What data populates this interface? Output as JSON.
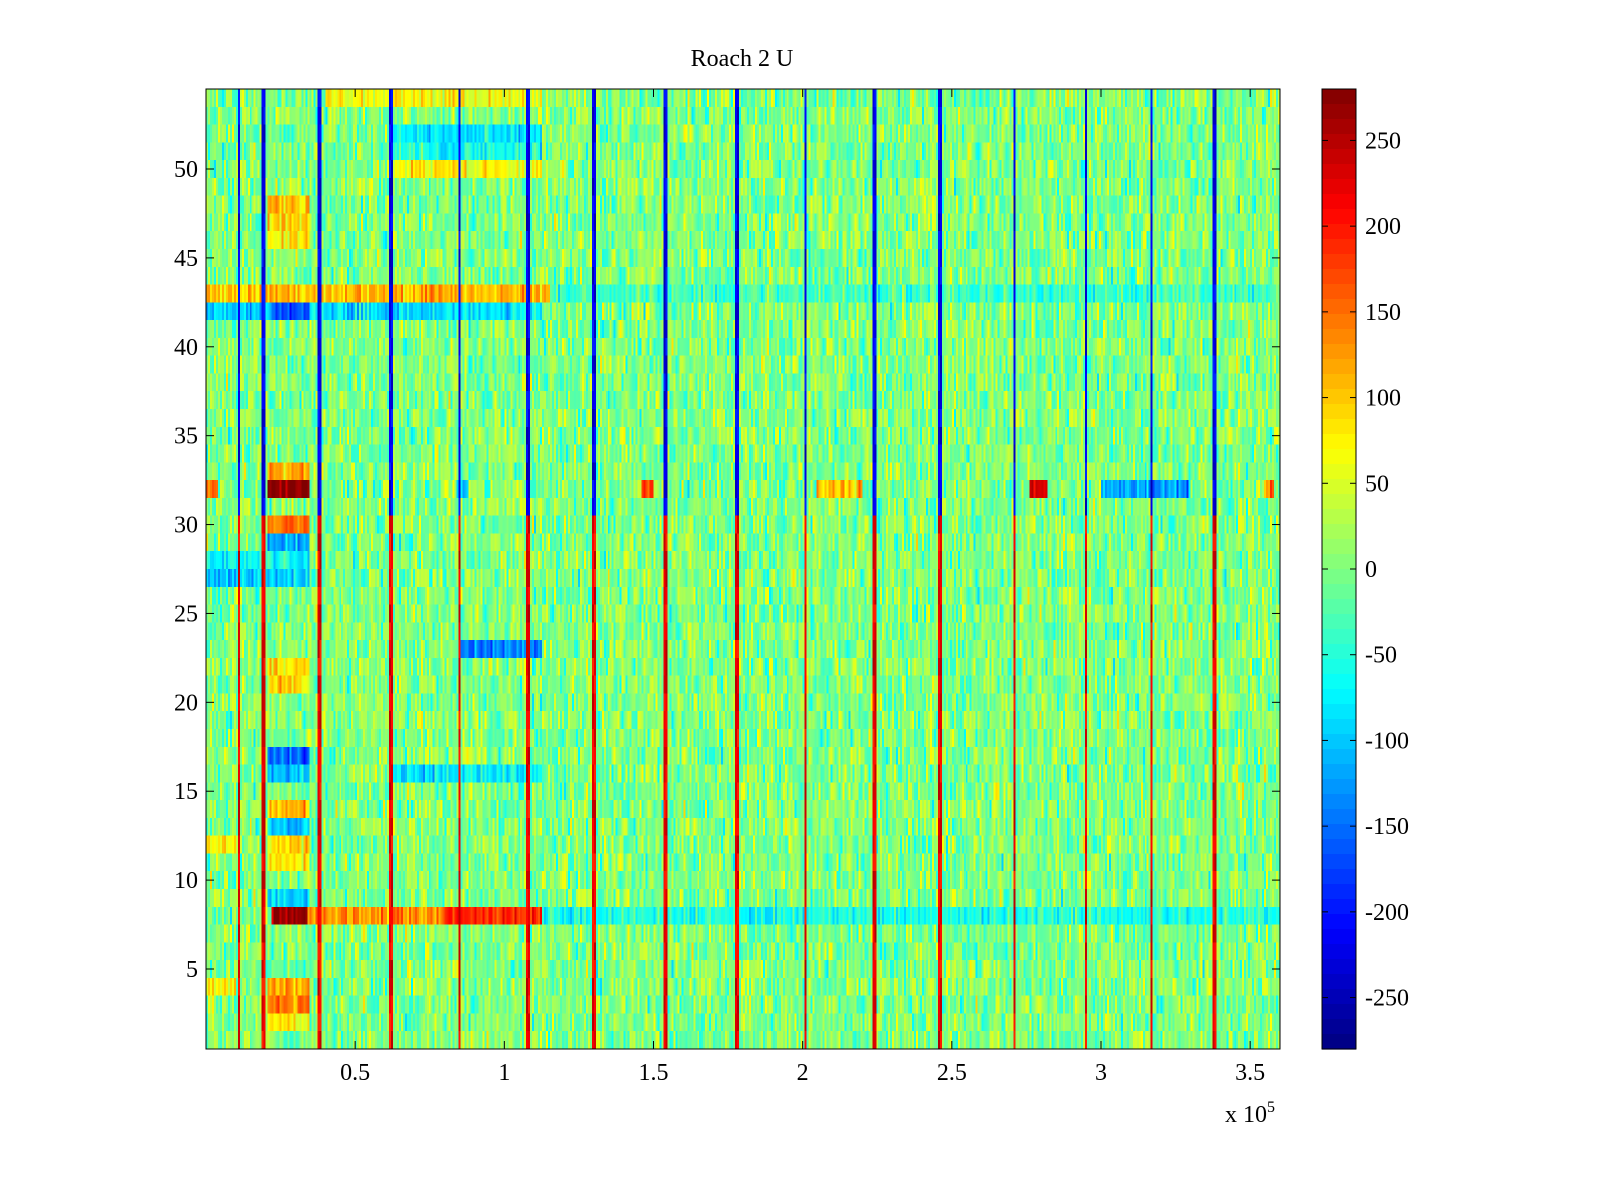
{
  "chart_data": {
    "type": "heatmap",
    "title": "Roach 2 U",
    "xlabel": "",
    "ylabel": "",
    "x_multiplier_label": {
      "base": "x 10",
      "exponent": "5"
    },
    "xlim": [
      0,
      360000
    ],
    "ylim": [
      0.5,
      54.5
    ],
    "xticks": [
      {
        "value": 0.5,
        "label": "0.5"
      },
      {
        "value": 1,
        "label": "1"
      },
      {
        "value": 1.5,
        "label": "1.5"
      },
      {
        "value": 2,
        "label": "2"
      },
      {
        "value": 2.5,
        "label": "2.5"
      },
      {
        "value": 3,
        "label": "3"
      },
      {
        "value": 3.5,
        "label": "3.5"
      }
    ],
    "yticks": [
      {
        "value": 5,
        "label": "5"
      },
      {
        "value": 10,
        "label": "10"
      },
      {
        "value": 15,
        "label": "15"
      },
      {
        "value": 20,
        "label": "20"
      },
      {
        "value": 25,
        "label": "25"
      },
      {
        "value": 30,
        "label": "30"
      },
      {
        "value": 35,
        "label": "35"
      },
      {
        "value": 40,
        "label": "40"
      },
      {
        "value": 45,
        "label": "45"
      },
      {
        "value": 50,
        "label": "50"
      }
    ],
    "colorbar": {
      "colormap": "jet",
      "range": [
        -280,
        280
      ],
      "ticks": [
        {
          "value": 250,
          "label": "250"
        },
        {
          "value": 200,
          "label": "200"
        },
        {
          "value": 150,
          "label": "150"
        },
        {
          "value": 100,
          "label": "100"
        },
        {
          "value": 50,
          "label": "50"
        },
        {
          "value": 0,
          "label": "0"
        },
        {
          "value": -50,
          "label": "-50"
        },
        {
          "value": -100,
          "label": "-100"
        },
        {
          "value": -150,
          "label": "-150"
        },
        {
          "value": -200,
          "label": "-200"
        },
        {
          "value": -250,
          "label": "-250"
        }
      ]
    },
    "rows": 54,
    "x_range": [
      0,
      360000
    ],
    "background_value": 0,
    "spike_columns_x": [
      11000,
      19500,
      38000,
      62000,
      85000,
      108000,
      130000,
      154000,
      178000,
      201000,
      224000,
      246000,
      271000,
      295000,
      317000,
      338000
    ],
    "spike_value_rows_1_30": 220,
    "spike_value_rows_31_54": -220,
    "features": [
      {
        "row": 32,
        "x": [
          21000,
          35000
        ],
        "value": 280
      },
      {
        "row": 33,
        "x": [
          21000,
          35000
        ],
        "value": 120
      },
      {
        "row": 30,
        "x": [
          21000,
          35000
        ],
        "value": 150
      },
      {
        "row": 29,
        "x": [
          21000,
          35000
        ],
        "value": -120
      },
      {
        "row": 8,
        "x": [
          22000,
          34000
        ],
        "value": 270
      },
      {
        "row": 8,
        "x": [
          34000,
          80000
        ],
        "value": 130
      },
      {
        "row": 8,
        "x": [
          80000,
          113000
        ],
        "value": 190
      },
      {
        "row": 8,
        "x": [
          113000,
          360000
        ],
        "value": -55
      },
      {
        "row": 42,
        "x": [
          0,
          22000
        ],
        "value": -95
      },
      {
        "row": 42,
        "x": [
          22000,
          35000
        ],
        "value": -170
      },
      {
        "row": 42,
        "x": [
          35000,
          113000
        ],
        "value": -85
      },
      {
        "row": 43,
        "x": [
          0,
          115000
        ],
        "value": 110
      },
      {
        "row": 43,
        "x": [
          115000,
          360000
        ],
        "value": -35
      },
      {
        "row": 47,
        "x": [
          21000,
          35000
        ],
        "value": 100
      },
      {
        "row": 48,
        "x": [
          21000,
          35000
        ],
        "value": 95
      },
      {
        "row": 46,
        "x": [
          21000,
          35000
        ],
        "value": 70
      },
      {
        "row": 50,
        "x": [
          62000,
          113000
        ],
        "value": 75
      },
      {
        "row": 52,
        "x": [
          62000,
          113000
        ],
        "value": -75
      },
      {
        "row": 51,
        "x": [
          62000,
          113000
        ],
        "value": -55
      },
      {
        "row": 54,
        "x": [
          40000,
          113000
        ],
        "value": 65
      },
      {
        "row": 17,
        "x": [
          21000,
          35000
        ],
        "value": -150
      },
      {
        "row": 16,
        "x": [
          21000,
          35000
        ],
        "value": -110
      },
      {
        "row": 14,
        "x": [
          21000,
          35000
        ],
        "value": 110
      },
      {
        "row": 13,
        "x": [
          21000,
          35000
        ],
        "value": -95
      },
      {
        "row": 12,
        "x": [
          21000,
          35000
        ],
        "value": 85
      },
      {
        "row": 11,
        "x": [
          21000,
          35000
        ],
        "value": 80
      },
      {
        "row": 9,
        "x": [
          21000,
          35000
        ],
        "value": -90
      },
      {
        "row": 3,
        "x": [
          21000,
          35000
        ],
        "value": 140
      },
      {
        "row": 4,
        "x": [
          21000,
          35000
        ],
        "value": 120
      },
      {
        "row": 2,
        "x": [
          21000,
          35000
        ],
        "value": 60
      },
      {
        "row": 21,
        "x": [
          21000,
          35000
        ],
        "value": 90
      },
      {
        "row": 22,
        "x": [
          21000,
          35000
        ],
        "value": 80
      },
      {
        "row": 23,
        "x": [
          85000,
          113000
        ],
        "value": -140
      },
      {
        "row": 27,
        "x": [
          0,
          35000
        ],
        "value": -100
      },
      {
        "row": 28,
        "x": [
          0,
          35000
        ],
        "value": -70
      },
      {
        "row": 16,
        "x": [
          62000,
          113000
        ],
        "value": -80
      },
      {
        "row": 12,
        "x": [
          0,
          10000
        ],
        "value": 90
      },
      {
        "row": 4,
        "x": [
          0,
          10000
        ],
        "value": 80
      },
      {
        "row": 32,
        "x": [
          0,
          4000
        ],
        "value": 150
      },
      {
        "row": 32,
        "x": [
          84000,
          88000
        ],
        "value": -120
      },
      {
        "row": 32,
        "x": [
          146000,
          150000
        ],
        "value": 190
      },
      {
        "row": 32,
        "x": [
          205000,
          220000
        ],
        "value": 110
      },
      {
        "row": 32,
        "x": [
          276000,
          282000
        ],
        "value": 230
      },
      {
        "row": 32,
        "x": [
          300000,
          330000
        ],
        "value": -120
      },
      {
        "row": 32,
        "x": [
          355000,
          358000
        ],
        "value": 130
      }
    ]
  }
}
